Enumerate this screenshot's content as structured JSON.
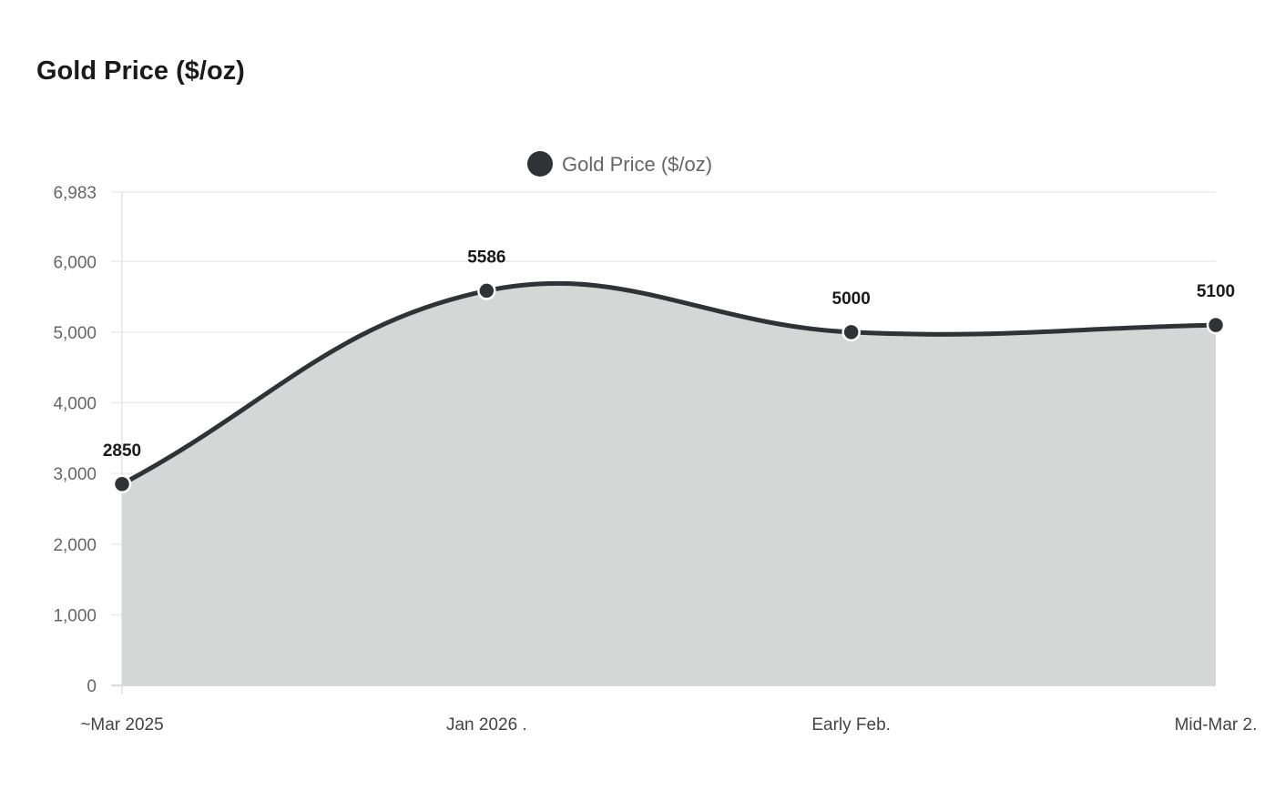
{
  "title": "Gold Price ($/oz)",
  "chart_data": {
    "type": "area",
    "title": "Gold Price ($/oz)",
    "categories": [
      "~Mar 2025",
      "Jan 2026 .",
      "Early Feb.",
      "Mid-Mar 2."
    ],
    "series": [
      {
        "name": "Gold Price ($/oz)",
        "values": [
          2850,
          5586,
          5000,
          5100
        ]
      }
    ],
    "data_labels": [
      "2850",
      "5586",
      "5000",
      "5100"
    ],
    "ylim": [
      0,
      6983
    ],
    "yticks": [
      0,
      1000,
      2000,
      3000,
      4000,
      5000,
      6000,
      6983
    ],
    "ytick_labels": [
      "0",
      "1,000",
      "2,000",
      "3,000",
      "4,000",
      "5,000",
      "6,000",
      "6,983"
    ],
    "grid": true,
    "legend": "top-center",
    "colors": {
      "line": "#2f3336",
      "fill": "#d5d6d6",
      "point_border": "#ffffff"
    }
  }
}
